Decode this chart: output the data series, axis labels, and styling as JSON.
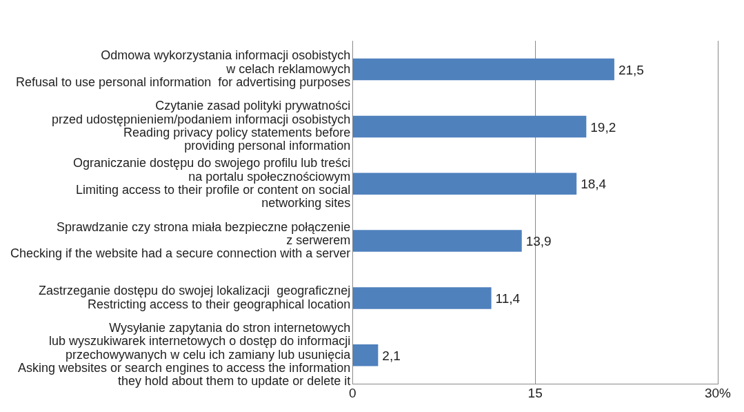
{
  "chart_data": {
    "type": "bar",
    "orientation": "horizontal",
    "categories": [
      "Odmowa wykorzystania informacji osobistych\nw celach reklamowych\nRefusal to use personal information  for advertising purposes",
      "Czytanie zasad polityki prywatności\nprzed udostępnieniem/podaniem informacji osobistych\nReading privacy policy statements before\nproviding personal information",
      "Ograniczanie dostępu do swojego profilu lub treści\nna portalu społecznościowym\nLimiting access to their profile or content on social\nnetworking sites",
      "Sprawdzanie czy strona miała bezpieczne połączenie\nz serwerem\nChecking if the website had a secure connection with a server",
      "Zastrzeganie dostępu do swojej lokalizacji  geograficznej\nRestricting access to their geographical location",
      "Wysyłanie zapytania do stron internetowych\nlub wyszukiwarek internetowych o dostęp do informacji\nprzechowywanych w celu ich zamiany lub usunięcia\nAsking websites or search engines to access the information\nthey hold about them to update or delete it"
    ],
    "values": [
      21.5,
      19.2,
      18.4,
      13.9,
      11.4,
      2.1
    ],
    "value_labels": [
      "21,5",
      "19,2",
      "18,4",
      "13,9",
      "11,4",
      "2,1"
    ],
    "color": "#4f81bd",
    "xlim": [
      0,
      30
    ],
    "xticks": [
      0,
      15,
      {
        "value": 30,
        "label": "30%"
      }
    ],
    "grid": "x"
  }
}
